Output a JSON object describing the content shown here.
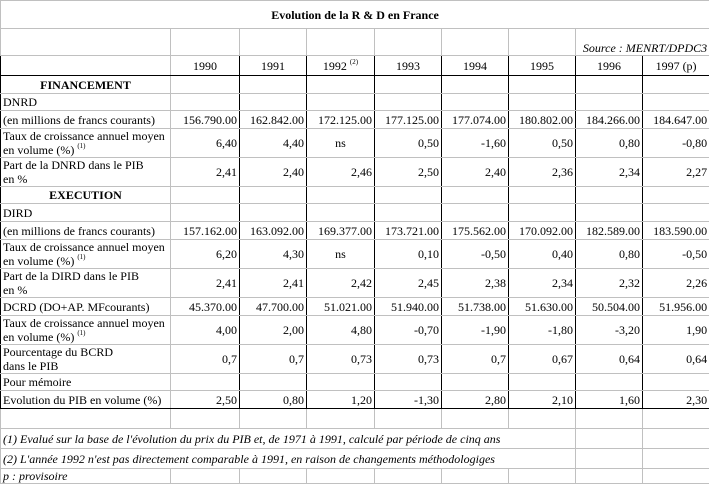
{
  "title": "Evolution de la R & D en France",
  "source": "Source : MENRT/DPDC3",
  "years": [
    "1990",
    "1991",
    "1992",
    "1993",
    "1994",
    "1995",
    "1996",
    "1997 (p)"
  ],
  "year_notes": [
    "",
    "",
    "(2)",
    "",
    "",
    "",
    "",
    ""
  ],
  "rows": [
    {
      "type": "section",
      "label": [
        "FINANCEMENT"
      ]
    },
    {
      "label": [
        "DNRD"
      ]
    },
    {
      "label": [
        "(en millions de francs courants)"
      ],
      "values": [
        "156.790.00",
        "162.842.00",
        "172.125.00",
        "177.125.00",
        "177.074.00",
        "180.802.00",
        "184.266.00",
        "184.647.00"
      ]
    },
    {
      "label": [
        "Taux de croissance annuel moyen",
        "en volume (%)"
      ],
      "sup": "(1)",
      "values": [
        "6,40",
        "4,40",
        "ns",
        "0,50",
        "-1,60",
        "0,50",
        "0,80",
        "-0,80"
      ]
    },
    {
      "label": [
        "Part de la DNRD dans le PIB",
        "en %"
      ],
      "values": [
        "2,41",
        "2,40",
        "2,46",
        "2,50",
        "2,40",
        "2,36",
        "2,34",
        "2,27"
      ]
    },
    {
      "type": "section",
      "label": [
        "EXECUTION"
      ]
    },
    {
      "label": [
        "DIRD"
      ]
    },
    {
      "label": [
        "(en millions de francs courants)"
      ],
      "values": [
        "157.162.00",
        "163.092.00",
        "169.377.00",
        "173.721.00",
        "175.562.00",
        "170.092.00",
        "182.589.00",
        "183.590.00"
      ]
    },
    {
      "label": [
        "Taux de croissance annuel moyen",
        "en volume (%)"
      ],
      "sup": "(1)",
      "values": [
        "6,20",
        "4,30",
        "ns",
        "0,10",
        "-0,50",
        "0,40",
        "0,80",
        "-0,50"
      ]
    },
    {
      "label": [
        "Part de la DIRD dans le PIB",
        "en %"
      ],
      "values": [
        "2,41",
        "2,41",
        "2,42",
        "2,45",
        "2,38",
        "2,34",
        "2,32",
        "2,26"
      ]
    },
    {
      "label": [
        "DCRD (DO+AP. MFcourants)"
      ],
      "values": [
        "45.370.00",
        "47.700.00",
        "51.021.00",
        "51.940.00",
        "51.738.00",
        "51.630.00",
        "50.504.00",
        "51.956.00"
      ]
    },
    {
      "label": [
        "Taux de croissance annuel moyen",
        "en volume (%)"
      ],
      "sup": "(1)",
      "values": [
        "4,00",
        "2,00",
        "4,80",
        "-0,70",
        "-1,90",
        "-1,80",
        "-3,20",
        "1,90"
      ]
    },
    {
      "label": [
        "Pourcentage du BCRD",
        "dans le PIB"
      ],
      "values": [
        "0,7",
        "0,7",
        "0,73",
        "0,73",
        "0,7",
        "0,67",
        "0,64",
        "0,64"
      ]
    },
    {
      "label": [
        "Pour mémoire"
      ]
    },
    {
      "label": [
        "Evolution du PIB en volume (%)"
      ],
      "values": [
        "2,50",
        "0,80",
        "1,20",
        "-1,30",
        "2,80",
        "2,10",
        "1,60",
        "2,30"
      ]
    }
  ],
  "notes": [
    "(1) Evalué sur la base de l'évolution du prix du PIB et, de 1971 à 1991, calculé par période de cinq ans",
    "(2) L'année 1992 n'est pas directement comparable à 1991, en raison de changements méthodologiges",
    "p : provisoire"
  ]
}
